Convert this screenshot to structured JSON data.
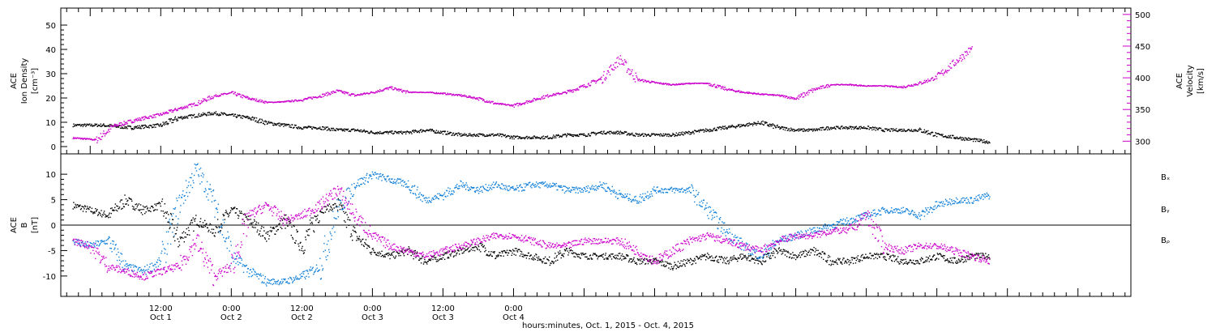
{
  "chart_data": [
    {
      "type": "scatter",
      "ylabel_lines": [
        "ACE",
        "Ion Density",
        "[cm⁻³]"
      ],
      "ylabel_right_lines": [
        "ACE",
        "Velocity",
        "[km/s]"
      ],
      "ylim": [
        -3,
        57
      ],
      "y_ticks": [
        0,
        10,
        20,
        30,
        40,
        50
      ],
      "y2lim": [
        280,
        510
      ],
      "y2_ticks": [
        300,
        350,
        400,
        450,
        500
      ],
      "series": [
        {
          "axis": "left",
          "color": "#000000",
          "points": [
            [
              -15,
              9
            ],
            [
              -10,
              9
            ],
            [
              -5,
              8
            ],
            [
              0,
              9
            ],
            [
              3,
              12
            ],
            [
              6,
              13
            ],
            [
              9,
              14
            ],
            [
              12,
              13
            ],
            [
              15,
              12
            ],
            [
              18,
              10
            ],
            [
              21,
              9
            ],
            [
              24,
              8
            ],
            [
              27,
              8
            ],
            [
              30,
              7
            ],
            [
              33,
              7
            ],
            [
              36,
              6
            ],
            [
              39,
              6
            ],
            [
              42,
              6
            ],
            [
              45,
              7
            ],
            [
              48,
              6
            ],
            [
              51,
              5
            ],
            [
              54,
              5
            ],
            [
              57,
              5
            ],
            [
              60,
              4
            ],
            [
              63,
              4
            ],
            [
              66,
              4
            ],
            [
              69,
              5
            ],
            [
              72,
              5
            ],
            [
              75,
              6
            ],
            [
              78,
              6
            ],
            [
              81,
              5
            ],
            [
              84,
              5
            ],
            [
              87,
              5
            ],
            [
              90,
              6
            ],
            [
              93,
              7
            ],
            [
              96,
              8
            ],
            [
              99,
              9
            ],
            [
              102,
              10
            ],
            [
              105,
              8
            ],
            [
              108,
              7
            ],
            [
              111,
              7
            ],
            [
              114,
              8
            ],
            [
              117,
              8
            ],
            [
              120,
              8
            ],
            [
              123,
              7
            ],
            [
              126,
              7
            ],
            [
              129,
              7
            ],
            [
              132,
              5
            ],
            [
              135,
              4
            ],
            [
              138,
              3
            ],
            [
              141,
              2
            ]
          ]
        },
        {
          "axis": "right",
          "color": "#cc00cc",
          "points": [
            [
              -15,
              306
            ],
            [
              -11,
              303
            ],
            [
              -8,
              325
            ],
            [
              -4,
              335
            ],
            [
              0,
              343
            ],
            [
              3,
              352
            ],
            [
              6,
              360
            ],
            [
              9,
              372
            ],
            [
              12,
              377
            ],
            [
              15,
              368
            ],
            [
              18,
              362
            ],
            [
              21,
              363
            ],
            [
              24,
              366
            ],
            [
              27,
              372
            ],
            [
              30,
              380
            ],
            [
              33,
              373
            ],
            [
              36,
              378
            ],
            [
              39,
              385
            ],
            [
              42,
              378
            ],
            [
              45,
              378
            ],
            [
              48,
              376
            ],
            [
              51,
              373
            ],
            [
              54,
              368
            ],
            [
              57,
              360
            ],
            [
              60,
              357
            ],
            [
              63,
              365
            ],
            [
              66,
              373
            ],
            [
              69,
              378
            ],
            [
              72,
              388
            ],
            [
              75,
              400
            ],
            [
              78,
              430
            ],
            [
              81,
              398
            ],
            [
              84,
              393
            ],
            [
              87,
              390
            ],
            [
              90,
              392
            ],
            [
              93,
              392
            ],
            [
              96,
              383
            ],
            [
              99,
              378
            ],
            [
              102,
              375
            ],
            [
              105,
              373
            ],
            [
              108,
              368
            ],
            [
              111,
              382
            ],
            [
              114,
              390
            ],
            [
              117,
              390
            ],
            [
              120,
              388
            ],
            [
              123,
              388
            ],
            [
              126,
              386
            ],
            [
              129,
              392
            ],
            [
              132,
              402
            ],
            [
              135,
              425
            ],
            [
              138,
              448
            ]
          ]
        }
      ]
    },
    {
      "type": "scatter",
      "ylabel_lines": [
        "ACE",
        "B",
        "[nT]"
      ],
      "ylim": [
        -14,
        14
      ],
      "y_ticks": [
        -10,
        -5,
        0,
        5,
        10
      ],
      "zero_line": true,
      "legend": [
        "Bₓ",
        "Bᵧ",
        "Bᵨ"
      ],
      "legend_placement": "right",
      "series": [
        {
          "name": "Bx",
          "color": "#000000",
          "points": [
            [
              -15,
              4
            ],
            [
              -12,
              3
            ],
            [
              -9,
              2
            ],
            [
              -6,
              5
            ],
            [
              -3,
              3
            ],
            [
              0,
              4
            ],
            [
              3,
              -3
            ],
            [
              6,
              1
            ],
            [
              9,
              -1
            ],
            [
              12,
              3
            ],
            [
              15,
              1
            ],
            [
              18,
              -2
            ],
            [
              21,
              1
            ],
            [
              24,
              -4
            ],
            [
              27,
              3
            ],
            [
              30,
              4
            ],
            [
              33,
              -2
            ],
            [
              36,
              -5
            ],
            [
              39,
              -6
            ],
            [
              42,
              -5
            ],
            [
              45,
              -7
            ],
            [
              48,
              -6
            ],
            [
              51,
              -5
            ],
            [
              54,
              -4
            ],
            [
              57,
              -6
            ],
            [
              60,
              -5
            ],
            [
              63,
              -6
            ],
            [
              66,
              -7
            ],
            [
              69,
              -5
            ],
            [
              72,
              -6
            ],
            [
              75,
              -6
            ],
            [
              78,
              -6
            ],
            [
              81,
              -7
            ],
            [
              84,
              -7
            ],
            [
              87,
              -8
            ],
            [
              90,
              -7
            ],
            [
              93,
              -6
            ],
            [
              96,
              -7
            ],
            [
              99,
              -6
            ],
            [
              102,
              -7
            ],
            [
              105,
              -5
            ],
            [
              108,
              -6
            ],
            [
              111,
              -5
            ],
            [
              114,
              -7
            ],
            [
              117,
              -7
            ],
            [
              120,
              -6
            ],
            [
              123,
              -6
            ],
            [
              126,
              -7
            ],
            [
              129,
              -7
            ],
            [
              132,
              -6
            ],
            [
              135,
              -7
            ],
            [
              138,
              -6
            ],
            [
              141,
              -6
            ]
          ]
        },
        {
          "name": "By",
          "color": "#0f7fd9",
          "points": [
            [
              -15,
              -3
            ],
            [
              -12,
              -4
            ],
            [
              -9,
              -3
            ],
            [
              -6,
              -8
            ],
            [
              -3,
              -9
            ],
            [
              0,
              -7
            ],
            [
              3,
              4
            ],
            [
              6,
              11
            ],
            [
              9,
              5
            ],
            [
              12,
              -6
            ],
            [
              15,
              -9
            ],
            [
              18,
              -11
            ],
            [
              21,
              -11
            ],
            [
              24,
              -10
            ],
            [
              27,
              -8
            ],
            [
              30,
              3
            ],
            [
              33,
              8
            ],
            [
              36,
              10
            ],
            [
              39,
              9
            ],
            [
              42,
              8
            ],
            [
              45,
              5
            ],
            [
              48,
              6
            ],
            [
              51,
              8
            ],
            [
              54,
              7
            ],
            [
              57,
              8
            ],
            [
              60,
              7
            ],
            [
              63,
              8
            ],
            [
              66,
              8
            ],
            [
              69,
              7
            ],
            [
              72,
              7
            ],
            [
              75,
              8
            ],
            [
              78,
              6
            ],
            [
              81,
              5
            ],
            [
              84,
              7
            ],
            [
              87,
              7
            ],
            [
              90,
              7
            ],
            [
              93,
              3
            ],
            [
              96,
              -1
            ],
            [
              99,
              -4
            ],
            [
              102,
              -6
            ],
            [
              105,
              -3
            ],
            [
              108,
              -2
            ],
            [
              111,
              -1
            ],
            [
              114,
              0
            ],
            [
              117,
              1
            ],
            [
              120,
              2
            ],
            [
              123,
              3
            ],
            [
              126,
              3
            ],
            [
              129,
              2
            ],
            [
              132,
              4
            ],
            [
              135,
              5
            ],
            [
              138,
              5
            ],
            [
              141,
              6
            ]
          ]
        },
        {
          "name": "Bz",
          "color": "#cc00cc",
          "points": [
            [
              -15,
              -3
            ],
            [
              -12,
              -4
            ],
            [
              -9,
              -8
            ],
            [
              -6,
              -9
            ],
            [
              -3,
              -10
            ],
            [
              0,
              -9
            ],
            [
              3,
              -8
            ],
            [
              6,
              -3
            ],
            [
              9,
              -10
            ],
            [
              12,
              -8
            ],
            [
              15,
              2
            ],
            [
              18,
              4
            ],
            [
              21,
              1
            ],
            [
              24,
              2
            ],
            [
              27,
              4
            ],
            [
              30,
              7
            ],
            [
              33,
              2
            ],
            [
              36,
              -2
            ],
            [
              39,
              -4
            ],
            [
              42,
              -5
            ],
            [
              45,
              -6
            ],
            [
              48,
              -5
            ],
            [
              51,
              -4
            ],
            [
              54,
              -3
            ],
            [
              57,
              -2
            ],
            [
              60,
              -2
            ],
            [
              63,
              -3
            ],
            [
              66,
              -4
            ],
            [
              69,
              -4
            ],
            [
              72,
              -3
            ],
            [
              75,
              -3
            ],
            [
              78,
              -3
            ],
            [
              81,
              -5
            ],
            [
              84,
              -7
            ],
            [
              87,
              -5
            ],
            [
              90,
              -3
            ],
            [
              93,
              -2
            ],
            [
              96,
              -3
            ],
            [
              99,
              -4
            ],
            [
              102,
              -5
            ],
            [
              105,
              -3
            ],
            [
              108,
              -2
            ],
            [
              111,
              -2
            ],
            [
              114,
              -1
            ],
            [
              117,
              -1
            ],
            [
              120,
              2
            ],
            [
              123,
              -4
            ],
            [
              126,
              -5
            ],
            [
              129,
              -4
            ],
            [
              132,
              -4
            ],
            [
              135,
              -5
            ],
            [
              138,
              -6
            ],
            [
              141,
              -7
            ]
          ]
        }
      ]
    }
  ],
  "x_axis": {
    "xlim": [
      -17,
      165
    ],
    "major_ticks": [
      {
        "hour": 0,
        "time": "12:00",
        "date": "Oct  1"
      },
      {
        "hour": 12,
        "time": "0:00",
        "date": "Oct  2"
      },
      {
        "hour": 24,
        "time": "12:00",
        "date": "Oct  2"
      },
      {
        "hour": 36,
        "time": "0:00",
        "date": "Oct  3"
      },
      {
        "hour": 48,
        "time": "12:00",
        "date": "Oct  3"
      },
      {
        "hour": 60,
        "time": "0:00",
        "date": "Oct  4"
      }
    ],
    "xlabel": "hours:minutes, Oct.  1, 2015 - Oct.  4, 2015"
  }
}
